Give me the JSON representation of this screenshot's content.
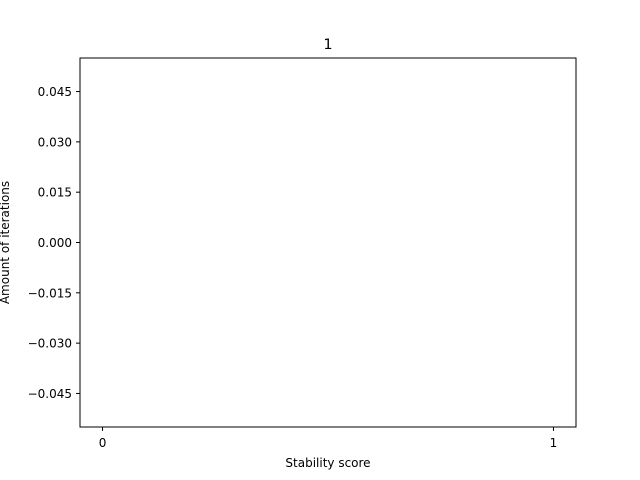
{
  "chart_data": {
    "type": "bar",
    "title": "1",
    "xlabel": "Stability score",
    "ylabel": "Amount of iterations",
    "categories": [
      "0",
      "1"
    ],
    "x": [
      0,
      1
    ],
    "values": [
      0,
      0
    ],
    "xlim": [
      -0.05,
      1.05
    ],
    "ylim": [
      -0.055,
      0.055
    ],
    "xticks": [
      0,
      1
    ],
    "xtick_labels": [
      "0",
      "1"
    ],
    "yticks": [
      0.045,
      0.03,
      0.015,
      0.0,
      -0.015,
      -0.03,
      -0.045
    ],
    "ytick_labels": [
      "0.045",
      "0.030",
      "0.015",
      "0.000",
      "−0.015",
      "−0.030",
      "−0.045"
    ],
    "grid": false,
    "legend": "none",
    "colors": {
      "frame": "#000000",
      "background": "#ffffff",
      "bar": "#1f77b4"
    }
  }
}
